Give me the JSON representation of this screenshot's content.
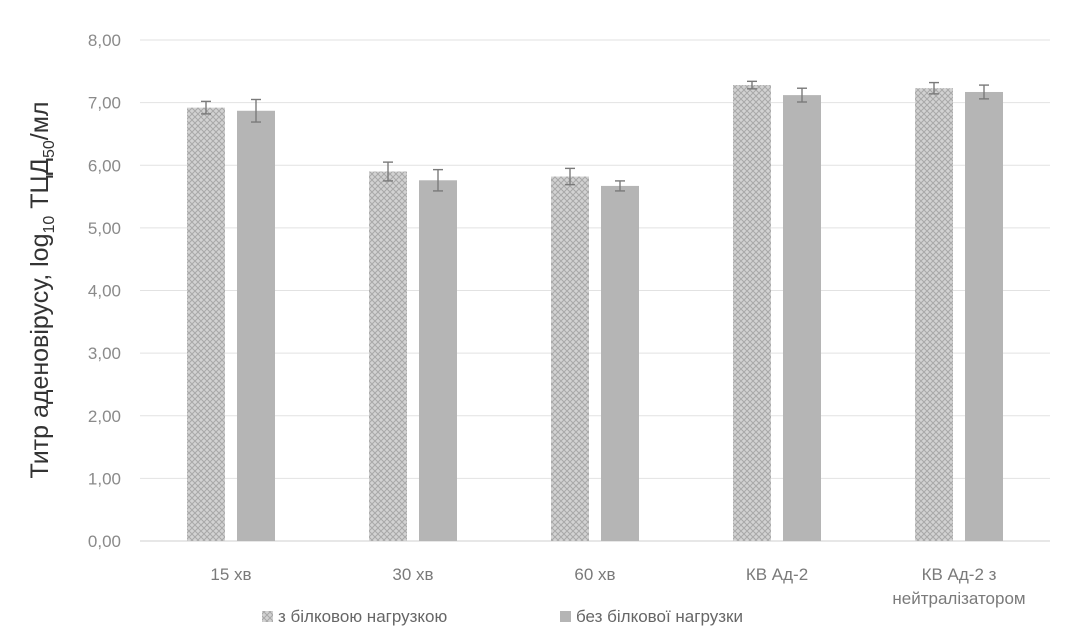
{
  "chart_data": {
    "type": "bar",
    "title": "",
    "xlabel": "",
    "ylabel_main": "Титр аденовірусу, log",
    "ylabel_sub1": "10",
    "ylabel_mid": " ТЦД",
    "ylabel_sub2": "50",
    "ylabel_end": "/мл",
    "ylim": [
      0,
      8
    ],
    "yticks": [
      "0,00",
      "1,00",
      "2,00",
      "3,00",
      "4,00",
      "5,00",
      "6,00",
      "7,00",
      "8,00"
    ],
    "grid": true,
    "legend_position": "bottom",
    "categories": [
      [
        "15 хв"
      ],
      [
        "30 хв"
      ],
      [
        "60 хв"
      ],
      [
        "КВ Ад-2"
      ],
      [
        "КВ Ад-2 з",
        "нейтралізатором"
      ]
    ],
    "series": [
      {
        "name": "з білковою нагрузкою",
        "pattern": "crosshatch",
        "color": "#c4c4c4",
        "values": [
          6.92,
          5.9,
          5.82,
          7.28,
          7.23
        ],
        "errors": [
          0.1,
          0.15,
          0.13,
          0.06,
          0.09
        ]
      },
      {
        "name": "без білкової нагрузки",
        "pattern": "solid",
        "color": "#b5b5b5",
        "values": [
          6.87,
          5.76,
          5.67,
          7.12,
          7.17
        ],
        "errors": [
          0.18,
          0.17,
          0.08,
          0.11,
          0.11
        ]
      }
    ]
  }
}
